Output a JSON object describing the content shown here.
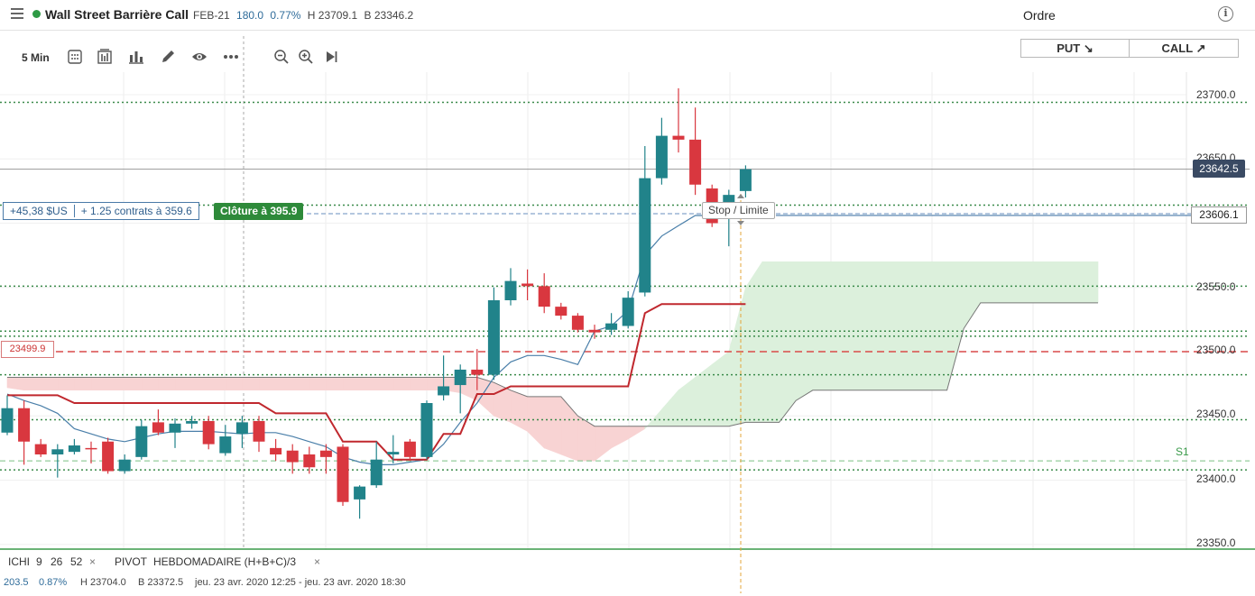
{
  "header": {
    "title": "Wall Street Barrière Call",
    "expiry": "FEB-21",
    "change": "180.0",
    "change_pct": "0.77%",
    "high": "H 23709.1",
    "bid": "B 23346.2",
    "order_title": "Ordre",
    "info_icon": "i"
  },
  "toolbar": {
    "timeframe": "5 Min",
    "icons": [
      "calendar-grid-icon",
      "candles-type-icon",
      "bar-chart-icon",
      "pencil-draw-icon",
      "eye-icon",
      "more-dots-icon",
      "zoom-out-icon",
      "zoom-in-icon",
      "play-forward-icon"
    ]
  },
  "trade_buttons": {
    "put": "PUT ↘",
    "call": "CALL ↗"
  },
  "position": {
    "pnl": "+45,38 $US",
    "contracts": "+ 1.25 contrats à 359.6",
    "close_label": "Clôture à 395.9",
    "stop_limit": "Stop / Limite",
    "alert": "23499.9"
  },
  "price_axis": {
    "labels": [
      "23700.0",
      "23650.0",
      "23550.0",
      "23500.0",
      "23450.0",
      "23400.0",
      "23350.0"
    ],
    "current_price": "23642.5",
    "order_price": "23606.1",
    "pivot_label": "S1"
  },
  "indicators": {
    "ichi_label": "ICHI",
    "ichi_params": [
      "9",
      "26",
      "52"
    ],
    "pivot_label": "PIVOT",
    "pivot_params": "HEBDOMADAIRE  (H+B+C)/3",
    "close": "×"
  },
  "footer": {
    "change": "203.5",
    "change_pct": "0.87%",
    "high": "H 23704.0",
    "low": "B 23372.5",
    "range": "jeu. 23 avr. 2020 12:25 - jeu. 23 avr. 2020 18:30"
  },
  "colors": {
    "up": "#21838a",
    "down": "#d9373f",
    "status": "#2e9a45",
    "kijun": "#c0282e",
    "tenkan": "#4a7fa9",
    "cloud_bear": "#f8d3d3",
    "cloud_bull": "#dcf0dc"
  },
  "chart_data": {
    "type": "candlestick",
    "instrument": "Wall Street Barrière Call",
    "timeframe": "5 Min",
    "ylim": [
      23340,
      23720
    ],
    "y_ticks": [
      23350,
      23400,
      23450,
      23500,
      23550,
      23600,
      23650,
      23700
    ],
    "candles": [
      {
        "o": 23437,
        "h": 23466,
        "l": 23435,
        "c": 23456
      },
      {
        "o": 23456,
        "h": 23462,
        "l": 23412,
        "c": 23430
      },
      {
        "o": 23428,
        "h": 23432,
        "l": 23418,
        "c": 23420
      },
      {
        "o": 23420,
        "h": 23428,
        "l": 23402,
        "c": 23424
      },
      {
        "o": 23422,
        "h": 23432,
        "l": 23420,
        "c": 23427
      },
      {
        "o": 23425,
        "h": 23430,
        "l": 23413,
        "c": 23424
      },
      {
        "o": 23430,
        "h": 23433,
        "l": 23405,
        "c": 23407
      },
      {
        "o": 23407,
        "h": 23420,
        "l": 23405,
        "c": 23416
      },
      {
        "o": 23418,
        "h": 23447,
        "l": 23416,
        "c": 23442
      },
      {
        "o": 23445,
        "h": 23455,
        "l": 23435,
        "c": 23437
      },
      {
        "o": 23437,
        "h": 23448,
        "l": 23425,
        "c": 23444
      },
      {
        "o": 23444,
        "h": 23450,
        "l": 23440,
        "c": 23446
      },
      {
        "o": 23446,
        "h": 23450,
        "l": 23424,
        "c": 23428
      },
      {
        "o": 23421,
        "h": 23443,
        "l": 23419,
        "c": 23434
      },
      {
        "o": 23436,
        "h": 23450,
        "l": 23425,
        "c": 23445
      },
      {
        "o": 23446,
        "h": 23450,
        "l": 23422,
        "c": 23430
      },
      {
        "o": 23425,
        "h": 23432,
        "l": 23415,
        "c": 23420
      },
      {
        "o": 23423,
        "h": 23428,
        "l": 23405,
        "c": 23414
      },
      {
        "o": 23420,
        "h": 23426,
        "l": 23405,
        "c": 23410
      },
      {
        "o": 23423,
        "h": 23428,
        "l": 23405,
        "c": 23418
      },
      {
        "o": 23426,
        "h": 23428,
        "l": 23380,
        "c": 23383
      },
      {
        "o": 23385,
        "h": 23396,
        "l": 23370,
        "c": 23395
      },
      {
        "o": 23396,
        "h": 23430,
        "l": 23394,
        "c": 23416
      },
      {
        "o": 23420,
        "h": 23435,
        "l": 23413,
        "c": 23422
      },
      {
        "o": 23430,
        "h": 23432,
        "l": 23415,
        "c": 23418
      },
      {
        "o": 23418,
        "h": 23462,
        "l": 23416,
        "c": 23460
      },
      {
        "o": 23466,
        "h": 23497,
        "l": 23462,
        "c": 23473
      },
      {
        "o": 23474,
        "h": 23490,
        "l": 23452,
        "c": 23486
      },
      {
        "o": 23486,
        "h": 23502,
        "l": 23470,
        "c": 23482
      },
      {
        "o": 23482,
        "h": 23550,
        "l": 23478,
        "c": 23540
      },
      {
        "o": 23540,
        "h": 23565,
        "l": 23536,
        "c": 23555
      },
      {
        "o": 23553,
        "h": 23564,
        "l": 23540,
        "c": 23551
      },
      {
        "o": 23551,
        "h": 23561,
        "l": 23530,
        "c": 23535
      },
      {
        "o": 23535,
        "h": 23538,
        "l": 23525,
        "c": 23528
      },
      {
        "o": 23528,
        "h": 23530,
        "l": 23515,
        "c": 23517
      },
      {
        "o": 23517,
        "h": 23521,
        "l": 23510,
        "c": 23515
      },
      {
        "o": 23517,
        "h": 23530,
        "l": 23513,
        "c": 23522
      },
      {
        "o": 23520,
        "h": 23547,
        "l": 23518,
        "c": 23542
      },
      {
        "o": 23546,
        "h": 23660,
        "l": 23543,
        "c": 23635
      },
      {
        "o": 23635,
        "h": 23682,
        "l": 23630,
        "c": 23668
      },
      {
        "o": 23668,
        "h": 23705,
        "l": 23655,
        "c": 23665
      },
      {
        "o": 23665,
        "h": 23690,
        "l": 23622,
        "c": 23630
      },
      {
        "o": 23627,
        "h": 23630,
        "l": 23597,
        "c": 23600
      },
      {
        "o": 23612,
        "h": 23626,
        "l": 23582,
        "c": 23622
      },
      {
        "o": 23625,
        "h": 23645,
        "l": 23620,
        "c": 23642
      }
    ],
    "tenkan": [
      23467,
      23462,
      23458,
      23452,
      23440,
      23436,
      23432,
      23430,
      23433,
      23436,
      23438,
      23438,
      23438,
      23437,
      23436,
      23437,
      23437,
      23434,
      23430,
      23426,
      23418,
      23414,
      23412,
      23412,
      23414,
      23416,
      23428,
      23445,
      23460,
      23480,
      23492,
      23497,
      23497,
      23494,
      23490,
      23516,
      23520,
      23532,
      23575,
      23590,
      23598,
      23606,
      23606,
      23606,
      23606
    ],
    "kijun": [
      23466,
      23466,
      23466,
      23466,
      23460,
      23460,
      23460,
      23460,
      23460,
      23460,
      23460,
      23460,
      23460,
      23460,
      23460,
      23460,
      23452,
      23452,
      23452,
      23452,
      23430,
      23430,
      23430,
      23416,
      23416,
      23416,
      23436,
      23436,
      23467,
      23467,
      23473,
      23473,
      23473,
      23473,
      23473,
      23473,
      23473,
      23473,
      23530,
      23537,
      23537,
      23537,
      23537,
      23537,
      23537
    ],
    "senkou_a": [
      23472,
      23470,
      23470,
      23470,
      23470,
      23470,
      23470,
      23470,
      23470,
      23470,
      23470,
      23470,
      23470,
      23470,
      23470,
      23470,
      23470,
      23470,
      23470,
      23470,
      23470,
      23470,
      23470,
      23470,
      23470,
      23470,
      23470,
      23468,
      23462,
      23450,
      23445,
      23438,
      23425,
      23420,
      23415,
      23415,
      23425,
      23432,
      23440,
      23455,
      23470,
      23480,
      23490,
      23500,
      23550,
      23570,
      23570,
      23570,
      23570,
      23570,
      23570,
      23570,
      23570,
      23570,
      23570,
      23570,
      23570,
      23570,
      23570,
      23570,
      23570,
      23570,
      23570,
      23570,
      23570,
      23570,
      23570,
      23570,
      23570,
      23570
    ],
    "senkou_b": [
      23480,
      23480,
      23480,
      23480,
      23480,
      23480,
      23480,
      23480,
      23480,
      23480,
      23480,
      23480,
      23480,
      23480,
      23480,
      23480,
      23480,
      23480,
      23480,
      23480,
      23480,
      23480,
      23480,
      23480,
      23480,
      23480,
      23480,
      23480,
      23480,
      23476,
      23470,
      23465,
      23465,
      23465,
      23450,
      23442,
      23442,
      23442,
      23442,
      23442,
      23442,
      23442,
      23442,
      23442,
      23445,
      23445,
      23445,
      23462,
      23470,
      23470,
      23470,
      23470,
      23470,
      23470,
      23470,
      23470,
      23470,
      23518,
      23538,
      23538,
      23538,
      23538,
      23538,
      23538,
      23538,
      23538
    ],
    "levels": {
      "current": 23642,
      "order": 23606,
      "alert": 23500,
      "dotted": [
        23694,
        23614,
        23551,
        23516,
        23512,
        23482,
        23447,
        23408
      ],
      "s1": 23415
    }
  }
}
